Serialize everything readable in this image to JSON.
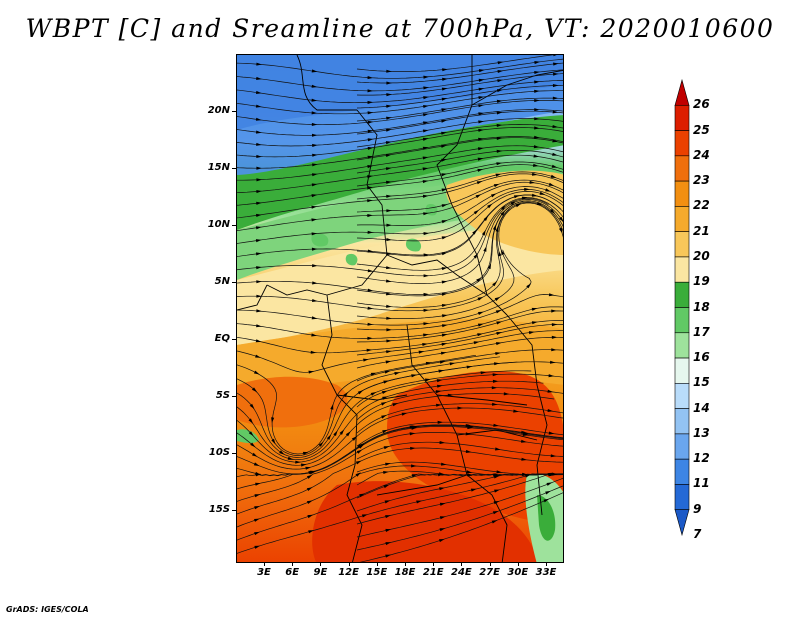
{
  "title": "WBPT [C] and Sreamline at 700hPa, VT: 2020010600",
  "credit": "GrADS: IGES/COLA",
  "map": {
    "latitude_labels": [
      "20N",
      "15N",
      "10N",
      "5N",
      "EQ",
      "5S",
      "10S",
      "15S"
    ],
    "longitude_labels": [
      "3E",
      "6E",
      "9E",
      "12E",
      "15E",
      "18E",
      "21E",
      "24E",
      "27E",
      "30E",
      "33E"
    ]
  },
  "colorbar": {
    "labels": [
      "26",
      "25",
      "24",
      "23",
      "22",
      "21",
      "20",
      "19",
      "18",
      "17",
      "16",
      "15",
      "14",
      "13",
      "12",
      "11",
      "9",
      "7"
    ],
    "colors": [
      "#c00000",
      "#dc1e00",
      "#eb4100",
      "#f06f0d",
      "#f28f11",
      "#f5aa2c",
      "#f8c75a",
      "#fbe6a2",
      "#3aad3a",
      "#61c965",
      "#9ee29c",
      "#e6f7ee",
      "#b9dcfa",
      "#93c3f3",
      "#6aa6ee",
      "#3d85e4",
      "#2469d6",
      "#1b59c7"
    ]
  }
}
